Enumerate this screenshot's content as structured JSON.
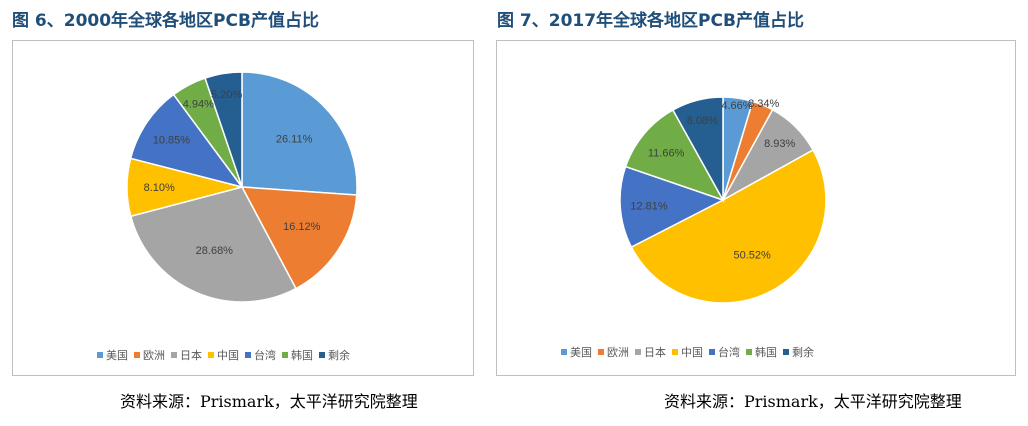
{
  "figures": [
    {
      "title": "图 6、2000年全球各地区PCB产值占比",
      "source": "资料来源：Prismark，太平洋研究院整理"
    },
    {
      "title": "图 7、2017年全球各地区PCB产值占比",
      "source": "资料来源：Prismark，太平洋研究院整理"
    }
  ],
  "colors": {
    "美国": "#5b9bd5",
    "欧洲": "#ed7d31",
    "日本": "#a5a5a5",
    "中国": "#ffc000",
    "台湾": "#4472c4",
    "韩国": "#70ad47",
    "剩余": "#255e91"
  },
  "chart_data": [
    {
      "type": "pie",
      "title": "",
      "categories": [
        "美国",
        "欧洲",
        "日本",
        "中国",
        "台湾",
        "韩国",
        "剩余"
      ],
      "values": [
        26.11,
        16.12,
        28.68,
        8.1,
        10.85,
        4.94,
        5.2
      ],
      "labels": [
        "26.11%",
        "16.12%",
        "28.68%",
        "8.10%",
        "10.85%",
        "4.94%",
        "5.20%"
      ],
      "legend": "bottom"
    },
    {
      "type": "pie",
      "title": "",
      "categories": [
        "美国",
        "欧洲",
        "日本",
        "中国",
        "台湾",
        "韩国",
        "剩余"
      ],
      "values": [
        4.66,
        3.34,
        8.93,
        50.52,
        12.81,
        11.66,
        8.08
      ],
      "labels": [
        "4.66%",
        "3.34%",
        "8.93%",
        "50.52%",
        "12.81%",
        "11.66%",
        "8.08%"
      ],
      "legend": "bottom"
    }
  ]
}
